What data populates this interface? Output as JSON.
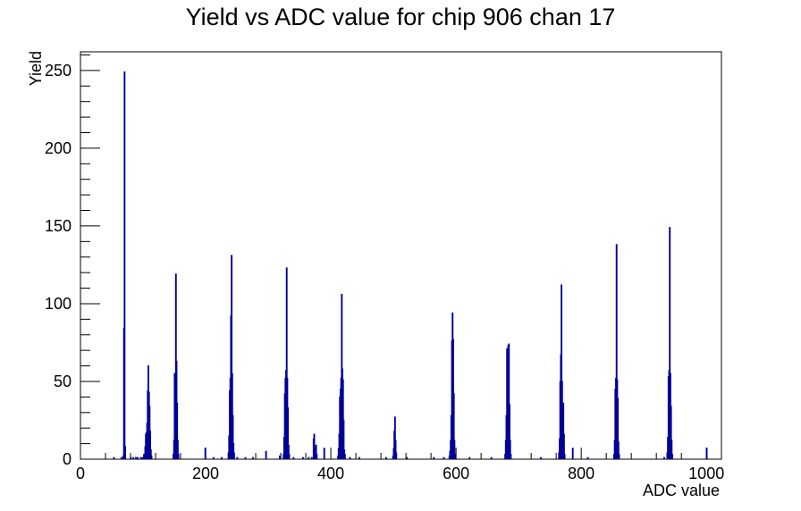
{
  "chart_data": {
    "type": "histogram",
    "title": "Yield vs ADC value for chip 906 chan 17",
    "xlabel": "ADC value",
    "ylabel": "Yield",
    "xlim": [
      0,
      1024
    ],
    "ylim": [
      0,
      262
    ],
    "x_ticks": [
      0,
      200,
      400,
      600,
      800,
      1000
    ],
    "y_ticks": [
      0,
      50,
      100,
      150,
      200,
      250
    ],
    "line_color": "#000099",
    "bin_width": 1,
    "series": [
      {
        "bins": [
          [
            53,
            1
          ],
          [
            65,
            1
          ],
          [
            68,
            2
          ],
          [
            69,
            84
          ],
          [
            70,
            249
          ],
          [
            71,
            8
          ],
          [
            80,
            1
          ],
          [
            84,
            1
          ],
          [
            88,
            1
          ],
          [
            91,
            1
          ],
          [
            96,
            1
          ],
          [
            99,
            1
          ],
          [
            101,
            3
          ],
          [
            102,
            3
          ],
          [
            103,
            8
          ],
          [
            104,
            16
          ],
          [
            105,
            17
          ],
          [
            106,
            23
          ],
          [
            107,
            44
          ],
          [
            108,
            60
          ],
          [
            109,
            43
          ],
          [
            110,
            34
          ],
          [
            111,
            18
          ],
          [
            112,
            6
          ],
          [
            113,
            2
          ],
          [
            148,
            3
          ],
          [
            149,
            12
          ],
          [
            150,
            55
          ],
          [
            151,
            48
          ],
          [
            152,
            119
          ],
          [
            153,
            63
          ],
          [
            154,
            36
          ],
          [
            155,
            12
          ],
          [
            156,
            3
          ],
          [
            199,
            7
          ],
          [
            212,
            1
          ],
          [
            225,
            1
          ],
          [
            236,
            4
          ],
          [
            237,
            15
          ],
          [
            238,
            44
          ],
          [
            239,
            52
          ],
          [
            240,
            92
          ],
          [
            241,
            131
          ],
          [
            242,
            55
          ],
          [
            243,
            28
          ],
          [
            244,
            10
          ],
          [
            245,
            4
          ],
          [
            250,
            1
          ],
          [
            263,
            1
          ],
          [
            275,
            1
          ],
          [
            296,
            5
          ],
          [
            318,
            2
          ],
          [
            324,
            3
          ],
          [
            325,
            14
          ],
          [
            326,
            42
          ],
          [
            327,
            52
          ],
          [
            328,
            57
          ],
          [
            329,
            123
          ],
          [
            330,
            52
          ],
          [
            331,
            33
          ],
          [
            332,
            9
          ],
          [
            333,
            3
          ],
          [
            340,
            1
          ],
          [
            355,
            1
          ],
          [
            364,
            1
          ],
          [
            369,
            1
          ],
          [
            372,
            13
          ],
          [
            373,
            16
          ],
          [
            374,
            7
          ],
          [
            375,
            3
          ],
          [
            376,
            9
          ],
          [
            377,
            3
          ],
          [
            389,
            7
          ],
          [
            411,
            2
          ],
          [
            412,
            7
          ],
          [
            413,
            16
          ],
          [
            414,
            40
          ],
          [
            415,
            45
          ],
          [
            416,
            52
          ],
          [
            417,
            106
          ],
          [
            418,
            58
          ],
          [
            419,
            51
          ],
          [
            420,
            25
          ],
          [
            421,
            6
          ],
          [
            422,
            3
          ],
          [
            430,
            1
          ],
          [
            445,
            1
          ],
          [
            488,
            1
          ],
          [
            499,
            2
          ],
          [
            500,
            7
          ],
          [
            501,
            18
          ],
          [
            502,
            27
          ],
          [
            503,
            12
          ],
          [
            504,
            4
          ],
          [
            521,
            1
          ],
          [
            564,
            1
          ],
          [
            580,
            1
          ],
          [
            589,
            2
          ],
          [
            590,
            5
          ],
          [
            591,
            12
          ],
          [
            592,
            28
          ],
          [
            593,
            76
          ],
          [
            594,
            94
          ],
          [
            595,
            77
          ],
          [
            596,
            42
          ],
          [
            597,
            12
          ],
          [
            598,
            3
          ],
          [
            621,
            1
          ],
          [
            656,
            1
          ],
          [
            678,
            3
          ],
          [
            679,
            12
          ],
          [
            680,
            28
          ],
          [
            681,
            71
          ],
          [
            682,
            49
          ],
          [
            683,
            73
          ],
          [
            684,
            74
          ],
          [
            685,
            35
          ],
          [
            686,
            12
          ],
          [
            687,
            3
          ],
          [
            735,
            1
          ],
          [
            764,
            4
          ],
          [
            765,
            13
          ],
          [
            766,
            50
          ],
          [
            767,
            67
          ],
          [
            768,
            112
          ],
          [
            769,
            50
          ],
          [
            770,
            34
          ],
          [
            771,
            36
          ],
          [
            772,
            16
          ],
          [
            773,
            3
          ],
          [
            786,
            7
          ],
          [
            810,
            1
          ],
          [
            852,
            3
          ],
          [
            853,
            12
          ],
          [
            854,
            45
          ],
          [
            855,
            52
          ],
          [
            856,
            138
          ],
          [
            857,
            51
          ],
          [
            858,
            39
          ],
          [
            859,
            11
          ],
          [
            860,
            3
          ],
          [
            932,
            1
          ],
          [
            937,
            4
          ],
          [
            938,
            14
          ],
          [
            939,
            53
          ],
          [
            940,
            57
          ],
          [
            941,
            149
          ],
          [
            942,
            55
          ],
          [
            943,
            34
          ],
          [
            944,
            12
          ],
          [
            945,
            3
          ],
          [
            1000,
            7
          ]
        ]
      }
    ]
  }
}
